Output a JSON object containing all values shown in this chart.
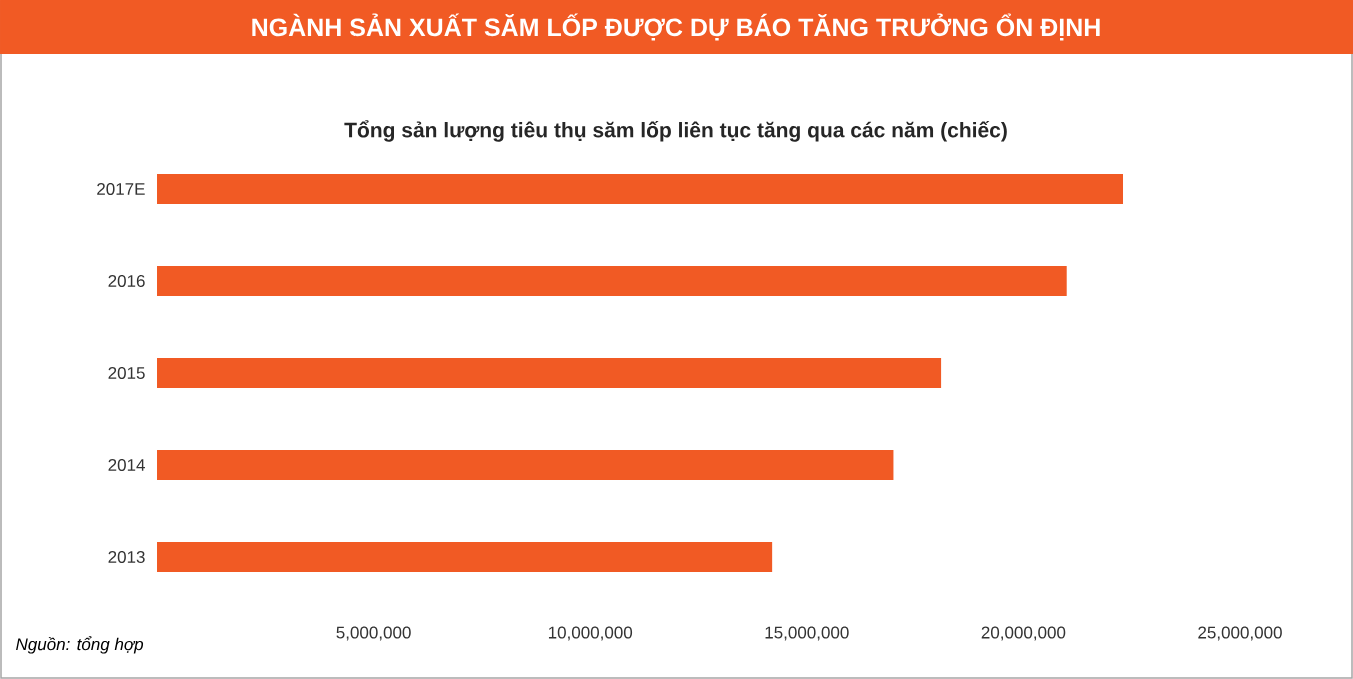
{
  "chart_data": {
    "type": "bar",
    "orientation": "horizontal",
    "title": "NGÀNH SẢN XUẤT SĂM LỐP ĐƯỢC DỰ BÁO TĂNG TRƯỞNG ỔN ĐỊNH",
    "subtitle": "Tổng sản lượng tiêu thụ săm lốp liên tục tăng qua các năm  (chiếc)",
    "categories": [
      "2017E",
      "2016",
      "2015",
      "2014",
      "2013"
    ],
    "values": [
      22300000,
      21000000,
      18100000,
      17000000,
      14200000
    ],
    "color": "#f15a24",
    "xlim": [
      0,
      25000000
    ],
    "xticks": [
      {
        "value": 5000000,
        "label": "5,000,000"
      },
      {
        "value": 10000000,
        "label": "10,000,000"
      },
      {
        "value": 15000000,
        "label": "15,000,000"
      },
      {
        "value": 20000000,
        "label": "20,000,000"
      },
      {
        "value": 25000000,
        "label": "25,000,000"
      }
    ],
    "annotations": [
      "Nguồn: tổng hợp"
    ],
    "grid": false
  }
}
